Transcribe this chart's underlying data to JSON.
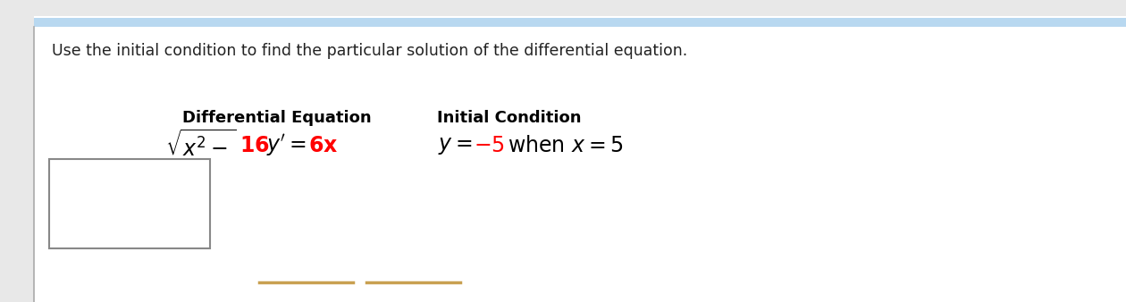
{
  "title": "Use the initial condition to find the particular solution of the differential equation.",
  "title_fontsize": 12.5,
  "bg_color": "#e8e8e8",
  "main_bg": "#ffffff",
  "top_bar_color": "#b8d8f0",
  "left_line_color": "#aaaaaa",
  "header_col1": "Differential Equation",
  "header_col2": "Initial Condition",
  "header_fontsize": 13,
  "box_color": "#888888",
  "bottom_lines_color": "#c8a050"
}
